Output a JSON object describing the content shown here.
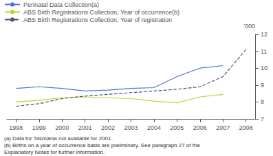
{
  "chart_data": {
    "type": "line",
    "x": [
      1998,
      1999,
      2000,
      2001,
      2002,
      2003,
      2004,
      2005,
      2006,
      2007,
      2008
    ],
    "series": [
      {
        "name": "Perinatal Data Collection(a)",
        "line_style": "solid",
        "values": [
          8.8,
          8.9,
          8.8,
          8.65,
          8.7,
          8.8,
          8.85,
          9.5,
          10.0,
          10.15,
          null
        ]
      },
      {
        "name": "ABS Birth Registrations Collection, Year of occurrence(b)",
        "line_style": "solid",
        "values": [
          8.0,
          8.1,
          8.25,
          8.3,
          8.25,
          8.2,
          8.05,
          7.95,
          8.3,
          8.45,
          null
        ]
      },
      {
        "name": "ABS Birth Registrations Collection, Year of registration",
        "line_style": "dashed",
        "values": [
          7.75,
          7.9,
          8.2,
          8.35,
          8.45,
          8.55,
          8.65,
          8.75,
          8.9,
          9.5,
          11.1
        ]
      }
    ],
    "ylabel": "'000",
    "xlim": [
      1997.6,
      2008.4
    ],
    "xticks": [
      1998,
      1999,
      2000,
      2001,
      2002,
      2003,
      2004,
      2005,
      2006,
      2007,
      2008
    ],
    "ylim": [
      7,
      12
    ],
    "yticks": [
      7,
      8,
      9,
      10,
      11,
      12
    ],
    "annotations": [
      "(a) Data for Tasmania not available for 2001.",
      "(b) Births on a year of occurrence basis are preliminary. See paragraph 27 of the",
      "Explanatory Notes for further information."
    ],
    "grid": false,
    "legend": "top"
  }
}
